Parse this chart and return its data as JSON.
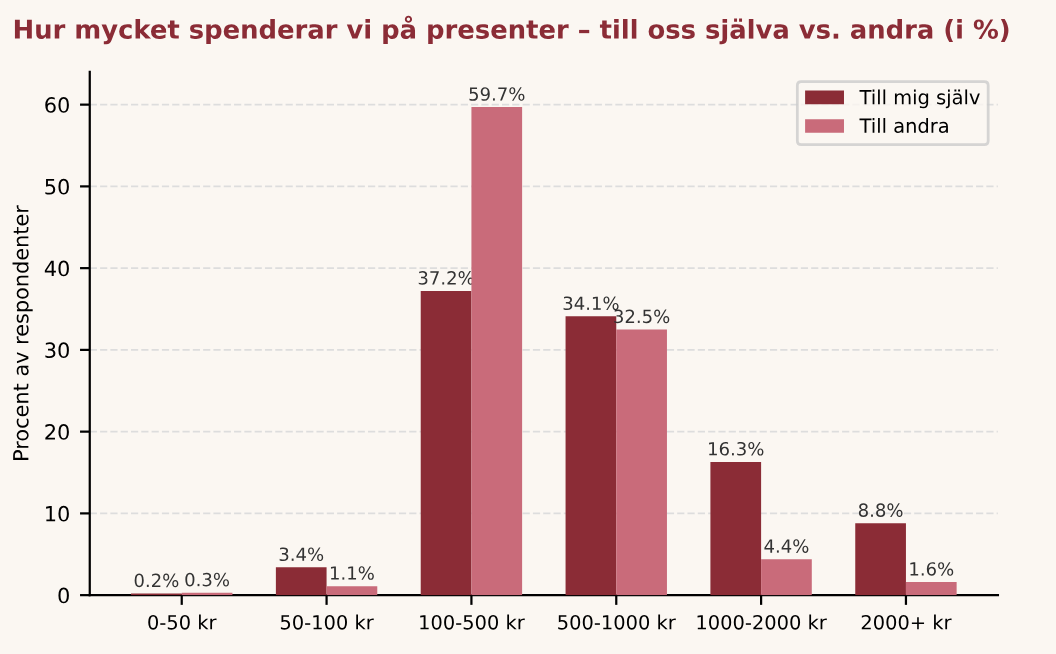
{
  "chart_data": {
    "type": "bar",
    "title": "Hur mycket spenderar vi på presenter – till oss själva vs. andra (i %)",
    "ylabel": "Procent av respondenter",
    "categories": [
      "0-50 kr",
      "50-100 kr",
      "100-500 kr",
      "500-1000 kr",
      "1000-2000 kr",
      "2000+ kr"
    ],
    "series": [
      {
        "name": "Till mig själv",
        "color": "#8b2c36",
        "values": [
          0.2,
          3.4,
          37.2,
          34.1,
          16.3,
          8.8
        ],
        "value_labels": [
          "0.2%",
          "3.4%",
          "37.2%",
          "34.1%",
          "16.3%",
          "8.8%"
        ]
      },
      {
        "name": "Till andra",
        "color": "#c96b7a",
        "values": [
          0.3,
          1.1,
          59.7,
          32.5,
          4.4,
          1.6
        ],
        "value_labels": [
          "0.3%",
          "1.1%",
          "59.7%",
          "32.5%",
          "4.4%",
          "1.6%"
        ]
      }
    ],
    "ylim": [
      0,
      64
    ],
    "yticks": [
      0,
      10,
      20,
      30,
      40,
      50,
      60
    ],
    "grid": "y",
    "legend": "top right"
  }
}
